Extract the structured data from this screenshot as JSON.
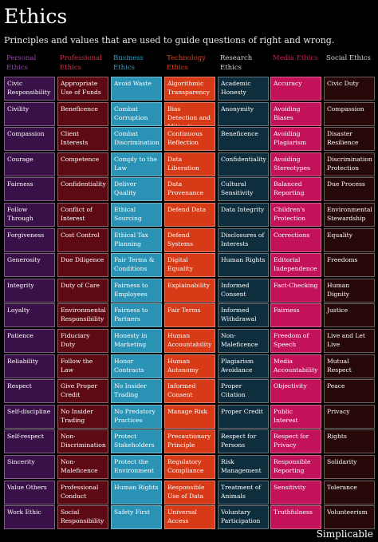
{
  "page": {
    "title": "Ethics",
    "subtitle": "Principles and values that are used to guide questions of right and wrong.",
    "brand": "Simplicable"
  },
  "columns": [
    {
      "header": "Personal Ethics",
      "header_color": "#a23fc2",
      "cell_color": "#3a1048",
      "items": [
        "Civic Responsibility",
        "Civility",
        "Compassion",
        "Courage",
        "Fairness",
        "Follow Through",
        "Forgiveness",
        "Generosity",
        "Integrity",
        "Loyalty",
        "Patience",
        "Reliability",
        "Respect",
        "Self-discipline",
        "Self-respect",
        "Sincerity",
        "Value Others",
        "Work Ethic"
      ]
    },
    {
      "header": "Professional Ethics",
      "header_color": "#d3334e",
      "cell_color": "#5e0a14",
      "items": [
        "Appropriate Use of Funds",
        "Beneficence",
        "Client Interests",
        "Competence",
        "Confidentiality",
        "Conflict of Interest",
        "Cost Control",
        "Due Diligence",
        "Duty of Care",
        "Environmental Responsibility",
        "Fiduciary Duty",
        "Follow the Law",
        "Give Proper Credit",
        "No Insider Trading",
        "Non-Discrimination",
        "Non-Maleficence",
        "Professional Conduct",
        "Social Responsibility"
      ]
    },
    {
      "header": "Business Ethics",
      "header_color": "#2aa7c9",
      "cell_color": "#2a93b5",
      "items": [
        "Avoid Waste",
        "Combat Corruption",
        "Combat Discrimination",
        "Comply to the Law",
        "Deliver Quality",
        "Ethical Sourcing",
        "Ethical Tax Planning",
        "Fair Terms & Conditions",
        "Fairness to Employees",
        "Fairness to Partners",
        "Honesty in Marketing",
        "Honor Contracts",
        "No Insider Trading",
        "No Predatory Practices",
        "Protect Stakeholders",
        "Protect the Environment",
        "Human Rights",
        "Safety First"
      ]
    },
    {
      "header": "Technology Ethics",
      "header_color": "#e0441f",
      "cell_color": "#d63a17",
      "items": [
        "Algorithmic Transparency",
        "Bias Detection and Mitigation",
        "Continuous Reflection",
        "Data Liberation",
        "Data Provenance",
        "Defend Data",
        "Defend Systems",
        "Digital Equality",
        "Explainability",
        "Fair Terms",
        "Human Accountability",
        "Human Autonomy",
        "Informed Consent",
        "Manage Risk",
        "Precautionary Principle",
        "Regulatory Compliance",
        "Responsible Use of Data",
        "Universal Access"
      ]
    },
    {
      "header": "Research Ethics",
      "header_color": "#d6d6d6",
      "cell_color": "#0f2e3d",
      "items": [
        "Academic Honesty",
        "Anonymity",
        "Beneficence",
        "Confidentiality",
        "Cultural Sensitivity",
        "Data Integrity",
        "Disclosures of Interests",
        "Human Rights",
        "Informed Consent",
        "Informed Withdrawal",
        "Non-Maleficence",
        "Plagiarism Avoidance",
        "Proper Citation",
        "Proper Credit",
        "Respect for Persons",
        "Risk Management",
        "Treatment of Animals",
        "Voluntary Participation"
      ]
    },
    {
      "header": "Media Ethics",
      "header_color": "#d6195f",
      "cell_color": "#c2135a",
      "items": [
        "Accuracy",
        "Avoiding Biases",
        "Avoiding Plagiarism",
        "Avoiding Stereotypes",
        "Balanced Reporting",
        "Children's Protection",
        "Corrections",
        "Editorial Independence",
        "Fact-Checking",
        "Fairness",
        "Freedom of Speech",
        "Media Accountability",
        "Objectivity",
        "Public Interest",
        "Respect for Privacy",
        "Responsible Reporting",
        "Sensitivity",
        "Truthfulness"
      ]
    },
    {
      "header": "Social Ethics",
      "header_color": "#d6d6d6",
      "cell_color": "#260808",
      "items": [
        "Civic Duty",
        "Compassion",
        "Disaster Resilience",
        "Discrimination Protection",
        "Due Process",
        "Environmental Stewardship",
        "Equality",
        "Freedoms",
        "Human Dignity",
        "Justice",
        "Live and Let Live",
        "Mutual Respect",
        "Peace",
        "Privacy",
        "Rights",
        "Solidarity",
        "Tolerance",
        "Volunteerism"
      ]
    }
  ]
}
